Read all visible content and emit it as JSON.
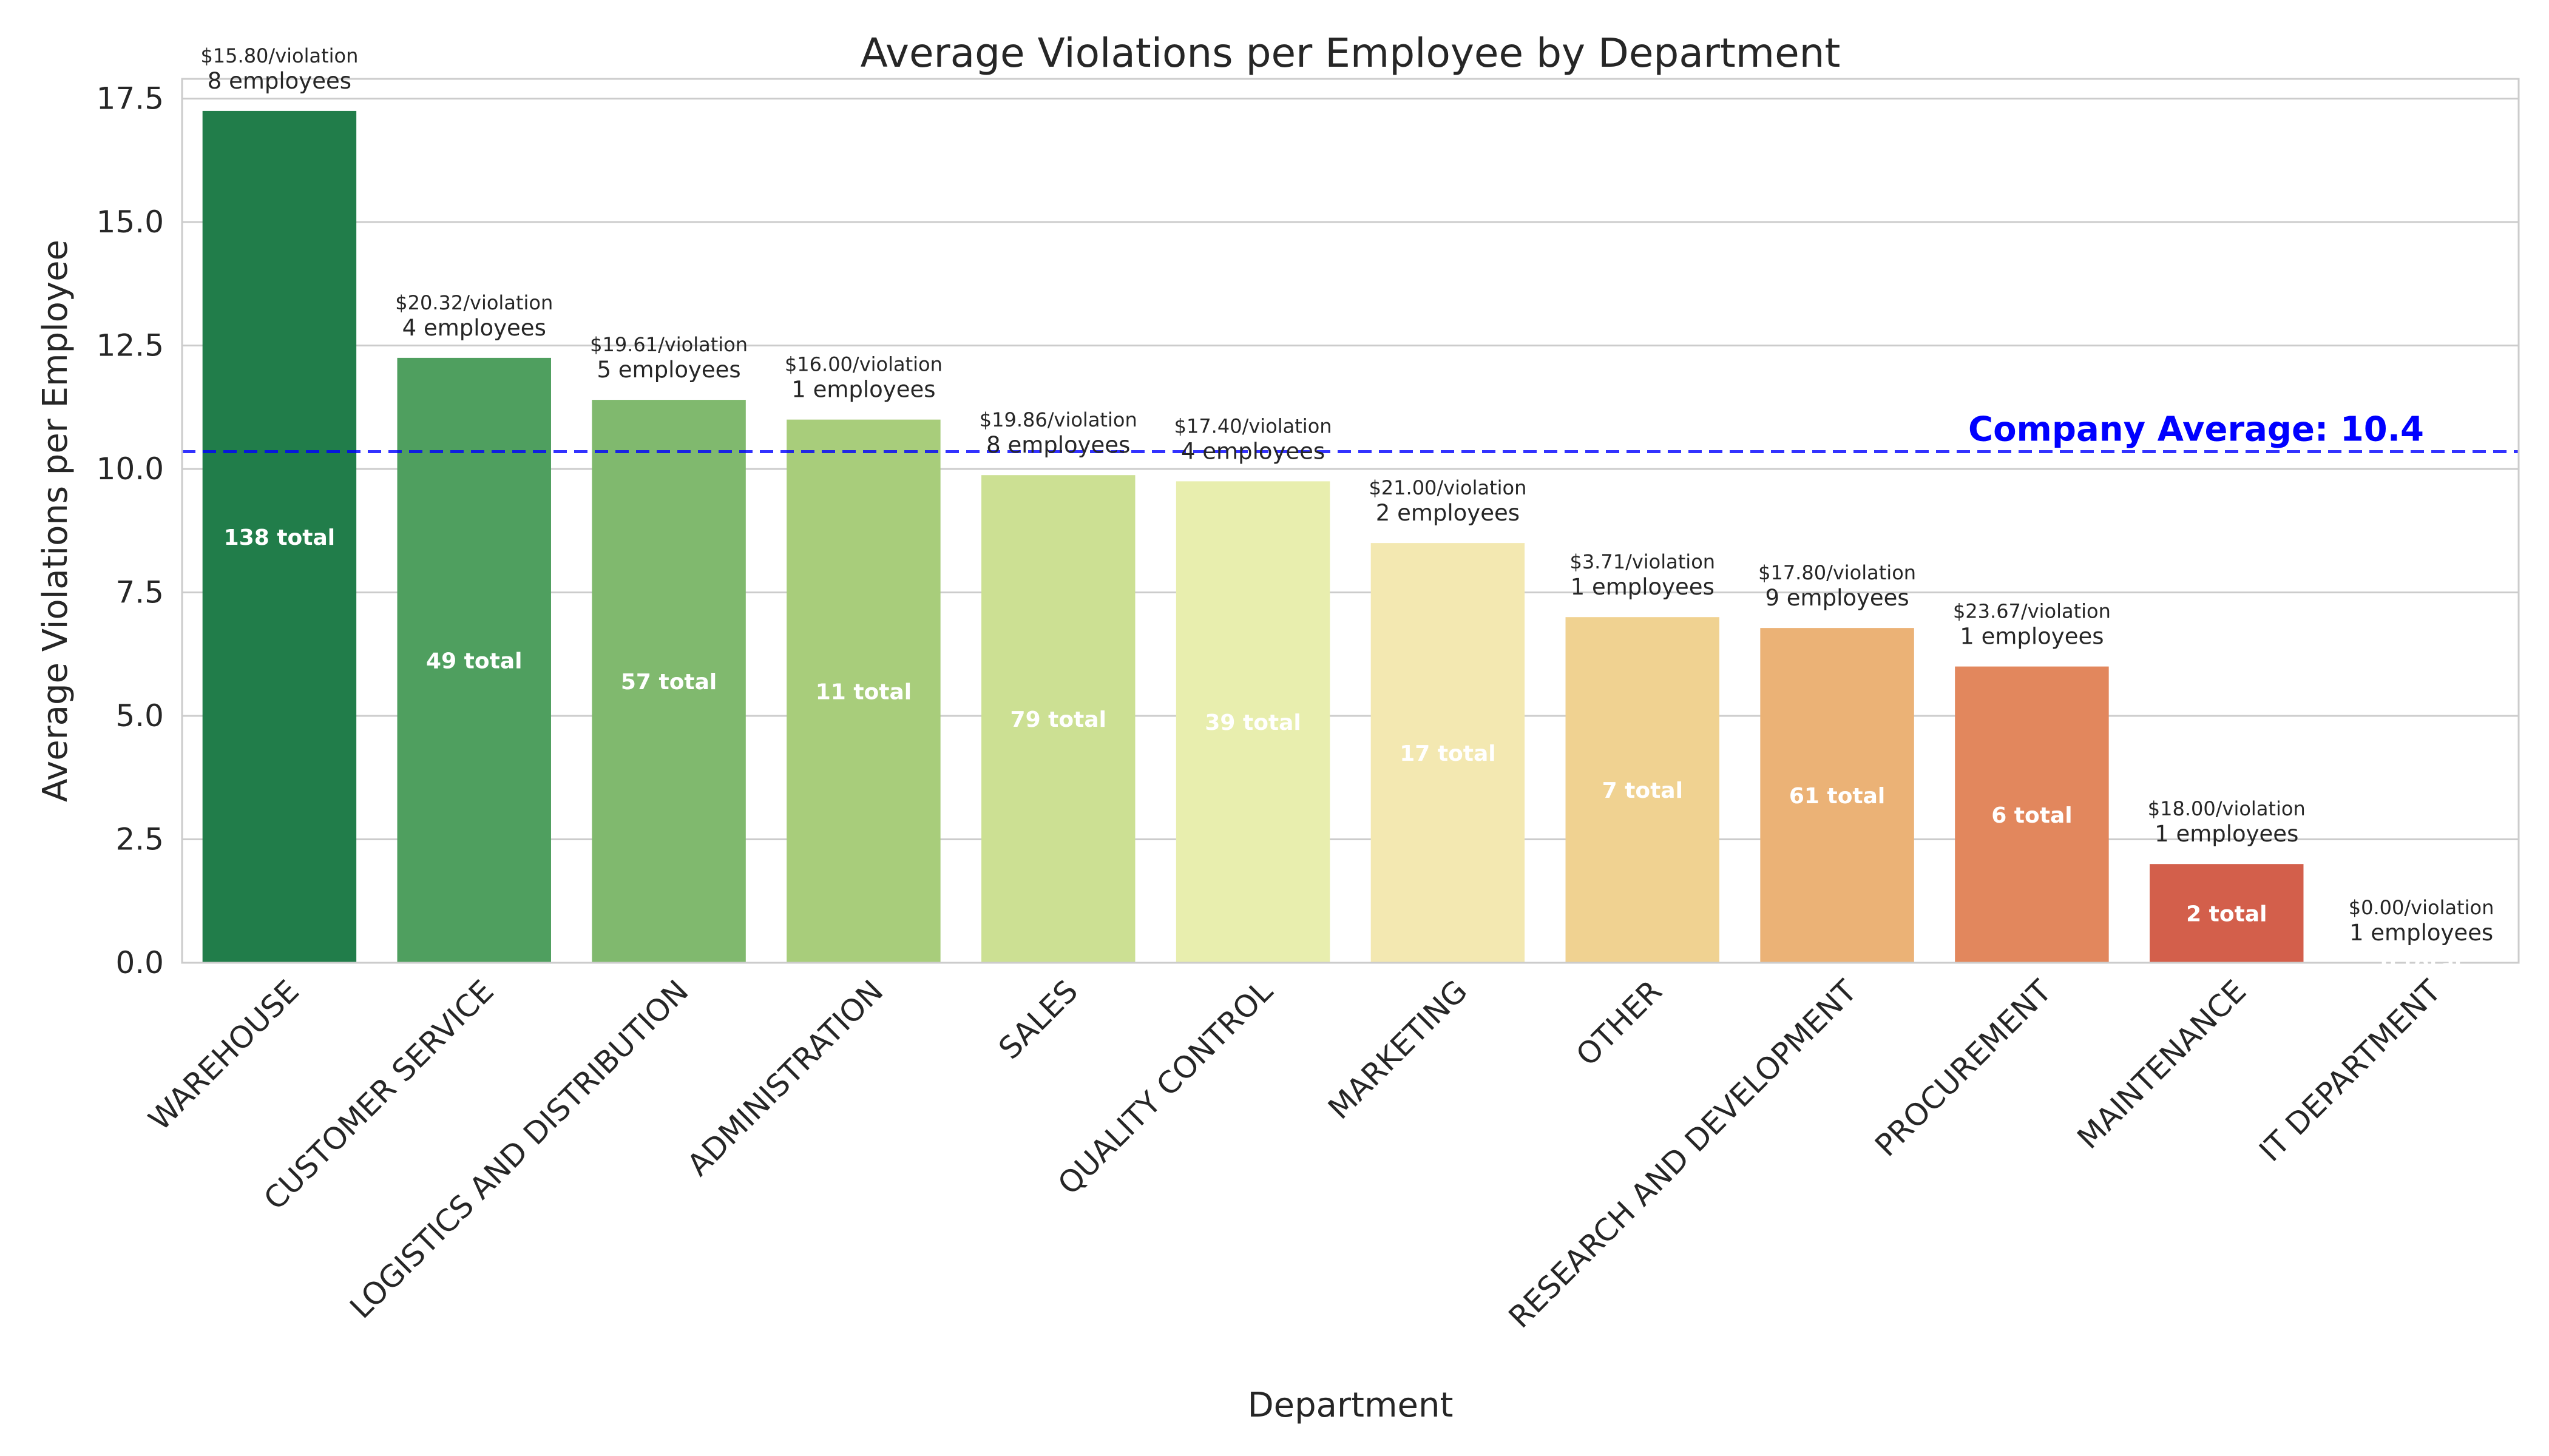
{
  "chart_data": {
    "type": "bar",
    "title": "Average Violations per Employee by Department",
    "xlabel": "Department",
    "ylabel": "Average Violations per Employee",
    "ylim": [
      0,
      17.9
    ],
    "yticks": [
      "0.0",
      "2.5",
      "5.0",
      "7.5",
      "10.0",
      "12.5",
      "15.0",
      "17.5"
    ],
    "ytick_values": [
      0,
      2.5,
      5,
      7.5,
      10,
      12.5,
      15,
      17.5
    ],
    "grid": "horizontal",
    "categories": [
      "WAREHOUSE",
      "CUSTOMER SERVICE",
      "LOGISTICS AND DISTRIBUTION",
      "ADMINISTRATION",
      "SALES",
      "QUALITY CONTROL",
      "MARKETING",
      "OTHER",
      "RESEARCH AND DEVELOPMENT",
      "PROCUREMENT",
      "MAINTENANCE",
      "IT DEPARTMENT"
    ],
    "values": [
      17.25,
      12.25,
      11.4,
      11.0,
      9.875,
      9.75,
      8.5,
      7.0,
      6.78,
      6.0,
      2.0,
      0.0
    ],
    "price_labels": [
      "$15.80/violation",
      "$20.32/violation",
      "$19.61/violation",
      "$16.00/violation",
      "$19.86/violation",
      "$17.40/violation",
      "$21.00/violation",
      "$3.71/violation",
      "$17.80/violation",
      "$23.67/violation",
      "$18.00/violation",
      "$0.00/violation"
    ],
    "employee_labels": [
      "8 employees",
      "4 employees",
      "5 employees",
      "1 employees",
      "8 employees",
      "4 employees",
      "2 employees",
      "1 employees",
      "9 employees",
      "1 employees",
      "1 employees",
      "1 employees"
    ],
    "total_labels": [
      "138 total",
      "49 total",
      "57 total",
      "11 total",
      "79 total",
      "39 total",
      "17 total",
      "7 total",
      "61 total",
      "6 total",
      "2 total",
      "0 total"
    ],
    "colors": [
      "#217d4a",
      "#4f9f5f",
      "#80b96e",
      "#a8cd7b",
      "#cce093",
      "#e8eeae",
      "#f3e8b1",
      "#f0d291",
      "#ebb276",
      "#e2875d",
      "#d35f4b",
      "#c9423e"
    ],
    "reference_line": {
      "value": 10.35,
      "label": "Company Average: 10.4",
      "color": "#0000ff"
    }
  }
}
